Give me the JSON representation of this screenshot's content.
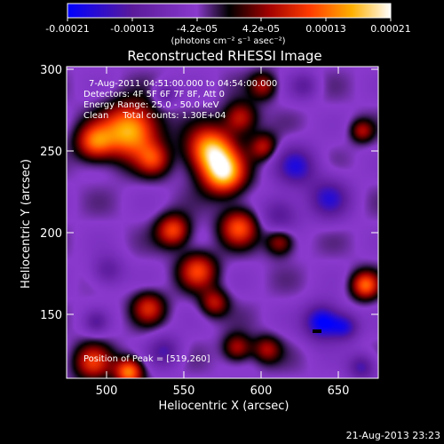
{
  "colorbar": {
    "ticks": [
      "-0.00021",
      "-0.00013",
      "-4.2e-05",
      "4.2e-05",
      "0.00013",
      "0.00021"
    ],
    "units_label": "(photons cm⁻² s⁻¹ asec⁻²)",
    "range": [
      -0.00021,
      0.00021
    ]
  },
  "plot": {
    "title": "Reconstructed RHESSI Image",
    "xlabel": "Heliocentric X (arcsec)",
    "ylabel": "Heliocentric Y (arcsec)",
    "xticks": [
      "500",
      "550",
      "600",
      "650"
    ],
    "yticks": [
      "300",
      "250",
      "200",
      "150"
    ]
  },
  "annotations": {
    "time_range": "7-Aug-2011 04:51:00.000 to 04:54:00.000",
    "detectors": "Detectors: 4F 5F 6F 7F 8F, Att 0",
    "energy_range": "Energy Range: 25.0 - 50.0 keV",
    "clean_counts": "Clean     Total counts: 1.30E+04",
    "peak_position": "Position of Peak = [519,260]"
  },
  "footer": {
    "date": "21-Aug-2013 23:23"
  },
  "chart_data": {
    "type": "heatmap",
    "title": "Reconstructed RHESSI Image",
    "xlabel": "Heliocentric X (arcsec)",
    "ylabel": "Heliocentric Y (arcsec)",
    "xlim": [
      480,
      670
    ],
    "ylim": [
      108,
      302
    ],
    "value_range": [
      -0.00021,
      0.00021
    ],
    "colormap": [
      "#0000ff",
      "#5a1a9a",
      "#8a3acd",
      "#000000",
      "#9f0000",
      "#ff3b00",
      "#ffb000",
      "#ffffff"
    ],
    "peak_position": [
      519,
      260
    ],
    "blobs": [
      {
        "x": 519,
        "y": 262,
        "sigma": 12,
        "amp": 1.0
      },
      {
        "x": 497,
        "y": 255,
        "sigma": 8,
        "amp": 0.7
      },
      {
        "x": 533,
        "y": 244,
        "sigma": 7,
        "amp": 0.5
      },
      {
        "x": 568,
        "y": 250,
        "sigma": 10,
        "amp": 1.0
      },
      {
        "x": 576,
        "y": 235,
        "sigma": 9,
        "amp": 0.95
      },
      {
        "x": 586,
        "y": 270,
        "sigma": 7,
        "amp": 0.55
      },
      {
        "x": 600,
        "y": 252,
        "sigma": 6,
        "amp": 0.5
      },
      {
        "x": 545,
        "y": 200,
        "sigma": 7,
        "amp": 0.7
      },
      {
        "x": 585,
        "y": 202,
        "sigma": 8,
        "amp": 0.7
      },
      {
        "x": 610,
        "y": 193,
        "sigma": 6,
        "amp": 0.5
      },
      {
        "x": 560,
        "y": 175,
        "sigma": 8,
        "amp": 0.65
      },
      {
        "x": 570,
        "y": 155,
        "sigma": 6,
        "amp": 0.5
      },
      {
        "x": 530,
        "y": 152,
        "sigma": 7,
        "amp": 0.55
      },
      {
        "x": 496,
        "y": 118,
        "sigma": 8,
        "amp": 0.6
      },
      {
        "x": 518,
        "y": 112,
        "sigma": 6,
        "amp": 0.85
      },
      {
        "x": 584,
        "y": 127,
        "sigma": 6,
        "amp": 0.5
      },
      {
        "x": 602,
        "y": 126,
        "sigma": 6,
        "amp": 0.45
      },
      {
        "x": 662,
        "y": 166,
        "sigma": 6,
        "amp": 0.75
      },
      {
        "x": 660,
        "y": 262,
        "sigma": 5,
        "amp": 0.45
      },
      {
        "x": 600,
        "y": 290,
        "sigma": 6,
        "amp": 0.45
      },
      {
        "x": 620,
        "y": 240,
        "sigma": 9,
        "amp": -0.6
      },
      {
        "x": 610,
        "y": 210,
        "sigma": 8,
        "amp": -0.45
      },
      {
        "x": 640,
        "y": 220,
        "sigma": 9,
        "amp": -0.55
      },
      {
        "x": 636,
        "y": 143,
        "sigma": 8,
        "amp": -0.85
      },
      {
        "x": 650,
        "y": 140,
        "sigma": 6,
        "amp": -0.55
      },
      {
        "x": 625,
        "y": 290,
        "sigma": 6,
        "amp": -0.35
      },
      {
        "x": 540,
        "y": 285,
        "sigma": 5,
        "amp": -0.4
      },
      {
        "x": 505,
        "y": 175,
        "sigma": 7,
        "amp": -0.4
      },
      {
        "x": 540,
        "y": 125,
        "sigma": 7,
        "amp": -0.45
      },
      {
        "x": 498,
        "y": 143,
        "sigma": 5,
        "amp": -0.35
      },
      {
        "x": 660,
        "y": 115,
        "sigma": 6,
        "amp": -0.5
      }
    ]
  }
}
